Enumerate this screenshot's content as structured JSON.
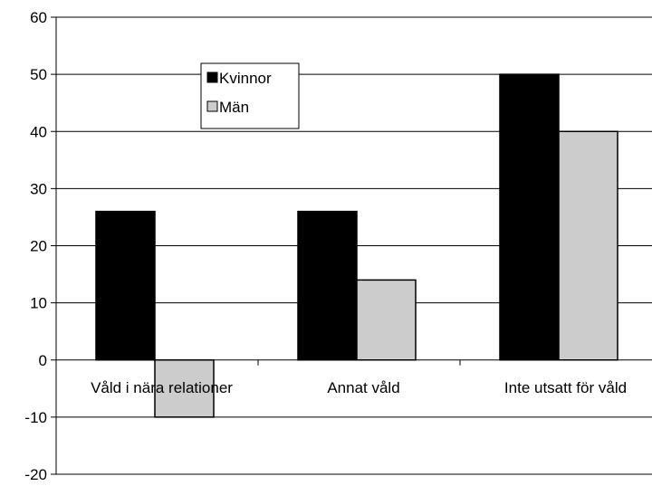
{
  "chart_data": {
    "type": "bar",
    "categories": [
      "Våld i nära relationer",
      "Annat våld",
      "Inte utsatt för våld"
    ],
    "series": [
      {
        "name": "Kvinnor",
        "values": [
          26,
          26,
          50
        ],
        "color": "#000000"
      },
      {
        "name": "Män",
        "values": [
          -10,
          14,
          40
        ],
        "color": "#cccccc"
      }
    ],
    "ylim": [
      -20,
      60
    ],
    "yticks": [
      60,
      50,
      40,
      30,
      20,
      10,
      0,
      -10,
      -20
    ],
    "ytick_labels": [
      "60",
      "50",
      "40",
      "30",
      "20",
      "10",
      "0",
      "-10",
      "-20"
    ],
    "grid": true,
    "legend_position": "top-left-inside",
    "title": "",
    "xlabel": "",
    "ylabel": ""
  }
}
